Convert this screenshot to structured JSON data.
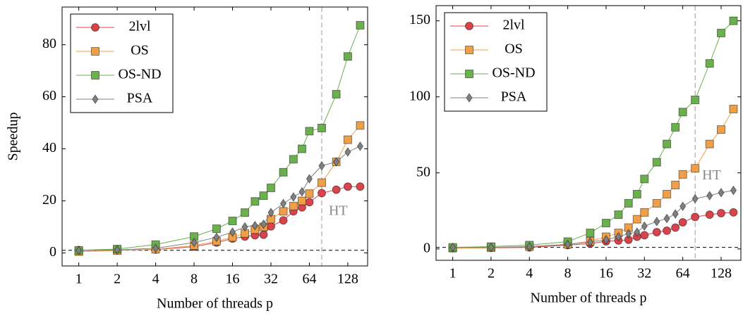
{
  "chart_data": [
    {
      "type": "line",
      "y_label": "Speedup",
      "x_label": "Number of threads p",
      "xscale": "log2",
      "x": [
        1,
        2,
        4,
        8,
        12,
        16,
        20,
        24,
        28,
        32,
        40,
        48,
        56,
        64,
        80,
        104,
        128,
        160
      ],
      "xlim": [
        0.74,
        183
      ],
      "xticks": [
        1,
        2,
        4,
        8,
        16,
        32,
        64,
        128
      ],
      "ylim": [
        -5,
        94.5
      ],
      "yticks": [
        0,
        20,
        40,
        60,
        80
      ],
      "hline": 1,
      "vline": 80,
      "annotation": "HT",
      "legend": "upper left",
      "series": [
        {
          "name": "2lvl",
          "color": "#d9434b",
          "marker": "circle",
          "values": [
            1,
            1,
            1.3,
            2.4,
            4,
            5.5,
            6.3,
            6.8,
            7,
            10.2,
            12.5,
            16,
            17.5,
            19.5,
            23,
            24.3,
            25.5,
            25.5
          ]
        },
        {
          "name": "OS",
          "color": "#ef9f48",
          "marker": "square",
          "values": [
            0.5,
            0.9,
            1.4,
            2.8,
            4.5,
            6,
            7.5,
            9,
            10,
            13,
            16,
            18,
            20,
            22.8,
            27,
            35,
            43.5,
            49
          ]
        },
        {
          "name": "OS-ND",
          "color": "#6ab04c",
          "marker": "square",
          "values": [
            1,
            1.5,
            3.2,
            6.3,
            9.3,
            12.3,
            15.5,
            19.8,
            22,
            25,
            31,
            36,
            40,
            46.8,
            48,
            61,
            75.5,
            87.5
          ]
        },
        {
          "name": "PSA",
          "color": "#808080",
          "marker": "diamond",
          "values": [
            1,
            1.2,
            1.8,
            4,
            6,
            8,
            10,
            10.5,
            11,
            15.5,
            19,
            21.5,
            23.5,
            28.5,
            33.5,
            35,
            38.8,
            41
          ]
        }
      ]
    },
    {
      "type": "line",
      "x_label": "Number of threads p",
      "xscale": "log2",
      "x": [
        1,
        2,
        4,
        8,
        12,
        16,
        20,
        24,
        28,
        32,
        40,
        48,
        56,
        64,
        80,
        104,
        128,
        160
      ],
      "xlim": [
        0.74,
        183
      ],
      "xticks": [
        1,
        2,
        4,
        8,
        16,
        32,
        64,
        128
      ],
      "ylim": [
        -7.5,
        160
      ],
      "yticks": [
        0,
        50,
        100,
        150
      ],
      "hline": 1,
      "vline": 80,
      "annotation": "HT",
      "legend": "upper left",
      "series": [
        {
          "name": "2lvl",
          "color": "#d9434b",
          "marker": "circle",
          "values": [
            0.5,
            0.7,
            1,
            2.5,
            3.5,
            5,
            5.5,
            6,
            8,
            9,
            11,
            12,
            14,
            17.5,
            21,
            22.5,
            23.5,
            24
          ]
        },
        {
          "name": "OS",
          "color": "#ef9f48",
          "marker": "square",
          "values": [
            0.5,
            0.8,
            1.5,
            3,
            5,
            8,
            10.5,
            14,
            19.5,
            24,
            30,
            36,
            42,
            49,
            53,
            69,
            78.5,
            92
          ]
        },
        {
          "name": "OS-ND",
          "color": "#6ab04c",
          "marker": "square",
          "values": [
            1,
            1.5,
            2.5,
            4.8,
            10.5,
            17,
            22.5,
            30,
            36,
            46,
            57,
            69,
            80,
            90,
            98,
            122,
            142,
            150
          ]
        },
        {
          "name": "PSA",
          "color": "#808080",
          "marker": "diamond",
          "values": [
            1,
            1,
            1.5,
            3,
            4.5,
            6,
            8,
            10,
            11,
            15,
            18,
            20,
            23,
            28,
            33,
            35,
            37,
            38.5
          ]
        }
      ]
    }
  ]
}
